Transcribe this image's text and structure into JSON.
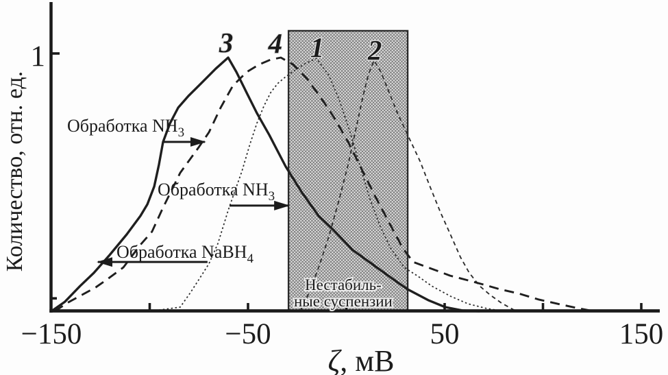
{
  "figure": {
    "y_axis_title": "Количество, отн. ед.",
    "x_title_zeta": "ζ",
    "x_title_rest": ", мВ"
  },
  "colors": {
    "line": "#1f1f1f",
    "thin_line": "#2e2e2e",
    "hatch_base": "#e2e2e2",
    "hatch_line": "#4a4a4a",
    "region_border": "#2a2a2a",
    "text": "#1c1c1c",
    "background": "#fdfdfd"
  },
  "chart_data": {
    "type": "line",
    "title": "",
    "xlabel": "ζ, мВ",
    "ylabel": "Количество, отн. ед.",
    "xlim": [
      -150,
      160
    ],
    "ylim": [
      0,
      1.2
    ],
    "grid": false,
    "legend": "none",
    "x_ticks_labeled": [
      {
        "value": -150,
        "label": "−150"
      },
      {
        "value": -50,
        "label": "−50"
      },
      {
        "value": 50,
        "label": "50"
      },
      {
        "value": 150,
        "label": "150"
      }
    ],
    "x_ticks_minor": [
      -100,
      0,
      100
    ],
    "y_ticks_labeled": [
      {
        "value": 1,
        "label": "1"
      }
    ],
    "y_ticks_minor": [
      0.05
    ],
    "unstable_region": {
      "x_min": -29.4,
      "x_max": 31.2,
      "y_top": 1.088,
      "label_line1": "Нестабиль-",
      "label_line2": "ные суспензии",
      "label_x": -1.6,
      "label_y1": 0.082,
      "label_y2": 0.019
    },
    "series": [
      {
        "name": "1",
        "line_style": "fine-dotted",
        "label": {
          "text": "1",
          "x": -14.8,
          "y": 0.987
        },
        "points": [
          [
            -99.5,
            0
          ],
          [
            -84.5,
            0.016
          ],
          [
            -79.3,
            0.072
          ],
          [
            -74.4,
            0.13
          ],
          [
            -69.9,
            0.184
          ],
          [
            -65.3,
            0.263
          ],
          [
            -60.1,
            0.391
          ],
          [
            -56.6,
            0.468
          ],
          [
            -53.1,
            0.543
          ],
          [
            -49,
            0.649
          ],
          [
            -45.5,
            0.729
          ],
          [
            -42,
            0.795
          ],
          [
            -38.5,
            0.848
          ],
          [
            -35,
            0.883
          ],
          [
            -30.8,
            0.91
          ],
          [
            -26.3,
            0.934
          ],
          [
            -21.1,
            0.96
          ],
          [
            -15.2,
            0.981
          ],
          [
            -8.9,
            0.915
          ],
          [
            -3.7,
            0.822
          ],
          [
            1.6,
            0.702
          ],
          [
            6.8,
            0.569
          ],
          [
            12,
            0.436
          ],
          [
            17.2,
            0.33
          ],
          [
            22.5,
            0.245
          ],
          [
            29.4,
            0.17
          ],
          [
            36.4,
            0.136
          ],
          [
            43.4,
            0.098
          ],
          [
            52.8,
            0.059
          ],
          [
            61.8,
            0.029
          ],
          [
            71.3,
            0.011
          ],
          [
            80,
            0
          ]
        ]
      },
      {
        "name": "2",
        "line_style": "fine-dashed",
        "label": {
          "text": "2",
          "x": 14.5,
          "y": 0.976
        },
        "points": [
          [
            -23.5,
            0
          ],
          [
            -18.6,
            0.077
          ],
          [
            -13.8,
            0.176
          ],
          [
            -8.9,
            0.29
          ],
          [
            -4,
            0.423
          ],
          [
            0.9,
            0.569
          ],
          [
            5.1,
            0.715
          ],
          [
            8.5,
            0.835
          ],
          [
            11.3,
            0.92
          ],
          [
            14.1,
            0.973
          ],
          [
            17.6,
            0.928
          ],
          [
            21.8,
            0.848
          ],
          [
            26,
            0.769
          ],
          [
            31.2,
            0.684
          ],
          [
            37.5,
            0.582
          ],
          [
            42.7,
            0.481
          ],
          [
            47.9,
            0.383
          ],
          [
            53.1,
            0.295
          ],
          [
            58,
            0.21
          ],
          [
            62.5,
            0.149
          ],
          [
            67.8,
            0.098
          ],
          [
            73,
            0.064
          ],
          [
            78.9,
            0.032
          ],
          [
            85.2,
            0.005
          ],
          [
            90.4,
            0
          ]
        ]
      },
      {
        "name": "3",
        "line_style": "solid",
        "label": {
          "text": "3",
          "x": -61.1,
          "y": 1.005
        },
        "points": [
          [
            -150,
            0
          ],
          [
            -143.1,
            0.037
          ],
          [
            -135.4,
            0.098
          ],
          [
            -128.4,
            0.149
          ],
          [
            -120.4,
            0.218
          ],
          [
            -111.7,
            0.298
          ],
          [
            -104.7,
            0.37
          ],
          [
            -101.2,
            0.415
          ],
          [
            -97.7,
            0.484
          ],
          [
            -95.3,
            0.569
          ],
          [
            -93.2,
            0.657
          ],
          [
            -89.7,
            0.729
          ],
          [
            -85.5,
            0.79
          ],
          [
            -80.3,
            0.835
          ],
          [
            -73.3,
            0.888
          ],
          [
            -66.4,
            0.941
          ],
          [
            -60.1,
            0.984
          ],
          [
            -55.9,
            0.928
          ],
          [
            -50.7,
            0.848
          ],
          [
            -45.5,
            0.769
          ],
          [
            -39.2,
            0.684
          ],
          [
            -35,
            0.622
          ],
          [
            -30.8,
            0.561
          ],
          [
            -22.8,
            0.463
          ],
          [
            -14.1,
            0.37
          ],
          [
            -6.4,
            0.314
          ],
          [
            3.3,
            0.237
          ],
          [
            15.5,
            0.17
          ],
          [
            24.2,
            0.122
          ],
          [
            31.2,
            0.085
          ],
          [
            41.6,
            0.043
          ],
          [
            50.3,
            0.016
          ],
          [
            59.1,
            0.003
          ],
          [
            67.8,
            0
          ]
        ]
      },
      {
        "name": "4",
        "line_style": "dashed",
        "label": {
          "text": "4",
          "x": -36.1,
          "y": 1.003
        },
        "points": [
          [
            -148.3,
            0
          ],
          [
            -141.3,
            0.035
          ],
          [
            -134.3,
            0.064
          ],
          [
            -127.4,
            0.093
          ],
          [
            -121.4,
            0.125
          ],
          [
            -113.4,
            0.17
          ],
          [
            -104.7,
            0.258
          ],
          [
            -98.8,
            0.309
          ],
          [
            -93.6,
            0.396
          ],
          [
            -84.5,
            0.537
          ],
          [
            -75.1,
            0.636
          ],
          [
            -69.9,
            0.694
          ],
          [
            -63.9,
            0.79
          ],
          [
            -57.7,
            0.875
          ],
          [
            -50.7,
            0.928
          ],
          [
            -44.4,
            0.957
          ],
          [
            -38.5,
            0.976
          ],
          [
            -33.3,
            0.984
          ],
          [
            -27,
            0.957
          ],
          [
            -20,
            0.902
          ],
          [
            -13.1,
            0.83
          ],
          [
            -6.1,
            0.75
          ],
          [
            0.9,
            0.657
          ],
          [
            7.8,
            0.551
          ],
          [
            14.8,
            0.444
          ],
          [
            21.8,
            0.343
          ],
          [
            28.7,
            0.245
          ],
          [
            34,
            0.191
          ],
          [
            44.4,
            0.162
          ],
          [
            52.8,
            0.138
          ],
          [
            60.8,
            0.122
          ],
          [
            69.5,
            0.104
          ],
          [
            78.2,
            0.085
          ],
          [
            87.6,
            0.069
          ],
          [
            98.1,
            0.045
          ],
          [
            108.5,
            0.027
          ],
          [
            118.3,
            0.011
          ],
          [
            126,
            0
          ]
        ]
      }
    ],
    "annotations": [
      {
        "id": "nh3-1",
        "text": "Обработка NH",
        "sub": "3",
        "text_x": -142.0,
        "text_y": 0.697,
        "arrow": {
          "x1": -93.2,
          "y1": 0.657,
          "x2": -72.0,
          "y2": 0.657
        }
      },
      {
        "id": "nh3-2",
        "text": "Обработка NH",
        "sub": "3",
        "text_x": -96.0,
        "text_y": 0.449,
        "arrow": {
          "x1": -59.4,
          "y1": 0.41,
          "x2": -29.4,
          "y2": 0.41
        }
      },
      {
        "id": "nabh4",
        "text": "Обработка NaBH",
        "sub": "4",
        "text_x": -116.9,
        "text_y": 0.207,
        "arrow": {
          "x1": -70.6,
          "y1": 0.191,
          "x2": -126.3,
          "y2": 0.191
        }
      }
    ]
  }
}
